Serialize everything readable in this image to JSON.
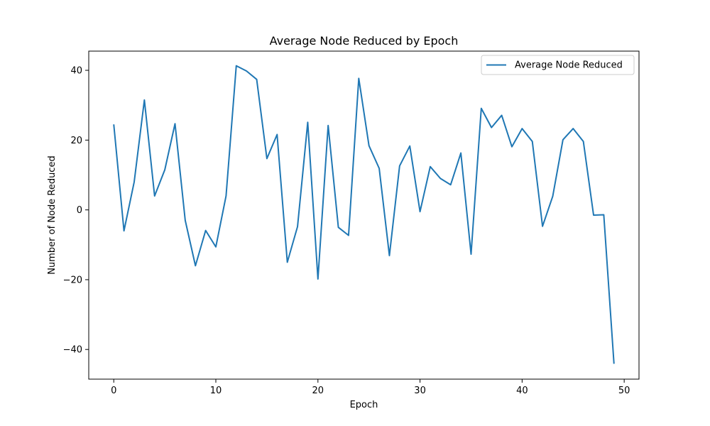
{
  "chart_data": {
    "type": "line",
    "title": "Average Node Reduced by Epoch",
    "xlabel": "Epoch",
    "ylabel": "Number of Node Reduced",
    "xlim": [
      -2.45,
      51.45
    ],
    "ylim": [
      -48.5,
      45.5
    ],
    "xticks": [
      0,
      10,
      20,
      30,
      40,
      50
    ],
    "yticks": [
      -40,
      -20,
      0,
      20,
      40
    ],
    "grid": false,
    "legend_position": "top-right",
    "series": [
      {
        "name": "Average Node Reduced",
        "color": "#1f77b4",
        "x": [
          0,
          1,
          2,
          3,
          4,
          5,
          6,
          7,
          8,
          9,
          10,
          11,
          12,
          13,
          14,
          15,
          16,
          17,
          18,
          19,
          20,
          21,
          22,
          23,
          24,
          25,
          26,
          27,
          28,
          29,
          30,
          31,
          32,
          33,
          34,
          35,
          36,
          37,
          38,
          39,
          40,
          41,
          42,
          43,
          44,
          45,
          46,
          47,
          48,
          49
        ],
        "values": [
          24.5,
          -6.0,
          8.0,
          31.5,
          4.0,
          11.5,
          24.7,
          -3.0,
          -16.0,
          -5.9,
          -10.6,
          4.0,
          41.3,
          39.8,
          37.4,
          14.7,
          21.6,
          -15.0,
          -4.8,
          25.1,
          -19.8,
          24.2,
          -5.0,
          -7.3,
          37.7,
          18.4,
          11.9,
          -13.1,
          12.6,
          18.3,
          -0.5,
          12.4,
          9.0,
          7.2,
          16.3,
          -12.7,
          29.1,
          23.6,
          27.1,
          18.1,
          23.3,
          19.6,
          -4.7,
          3.9,
          20.1,
          23.3,
          19.6,
          -1.5,
          -1.4,
          -44.1
        ]
      }
    ]
  }
}
